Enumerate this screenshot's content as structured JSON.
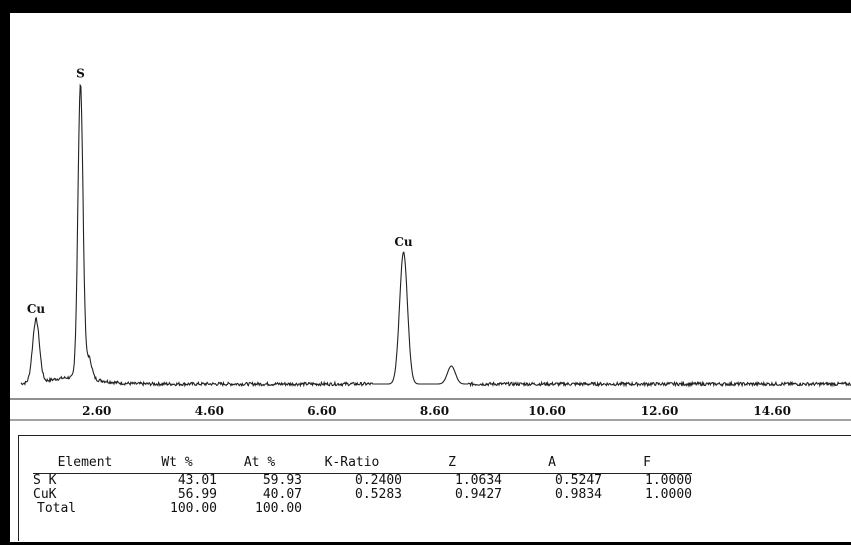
{
  "chart_data": {
    "type": "line",
    "title": "",
    "xlabel": "",
    "ylabel": "",
    "xlim": [
      1.2,
      16.0
    ],
    "ylim": [
      0,
      100
    ],
    "x_ticks": [
      "2.60",
      "4.60",
      "6.60",
      "8.60",
      "10.60",
      "12.60",
      "14.60"
    ],
    "x_tick_values": [
      2.6,
      4.6,
      6.6,
      8.6,
      10.6,
      12.6,
      14.6
    ],
    "grid": false,
    "series": [
      {
        "values_description_free": true,
        "peaks": [
          {
            "element": "Cu",
            "energy": 1.52,
            "height": 21,
            "width": 0.06
          },
          {
            "element": "S",
            "energy": 2.31,
            "height": 98,
            "width": 0.045
          },
          {
            "element": "",
            "energy": 2.46,
            "height": 7,
            "width": 0.05
          },
          {
            "element": "Cu",
            "energy": 8.05,
            "height": 44,
            "width": 0.07
          },
          {
            "element": "",
            "energy": 8.9,
            "height": 6,
            "width": 0.07
          }
        ],
        "baseline": 3
      }
    ],
    "peak_labels": [
      {
        "text": "Cu",
        "energy": 1.52
      },
      {
        "text": "S",
        "energy": 2.31
      },
      {
        "text": "Cu",
        "energy": 8.05
      }
    ]
  },
  "results_table": {
    "headers": [
      "Element",
      "Wt %",
      "At %",
      "K-Ratio",
      "Z",
      "A",
      "F"
    ],
    "rows": [
      [
        "S K",
        "43.01",
        "59.93",
        "0.2400",
        "1.0634",
        "0.5247",
        "1.0000"
      ],
      [
        "CuK",
        "56.99",
        "40.07",
        "0.5283",
        "0.9427",
        "0.9834",
        "1.0000"
      ],
      [
        "Total",
        "100.00",
        "100.00",
        "",
        "",
        "",
        ""
      ]
    ]
  },
  "colors": {
    "trace": "#222222",
    "frame": "#000000",
    "background": "#ffffff"
  }
}
